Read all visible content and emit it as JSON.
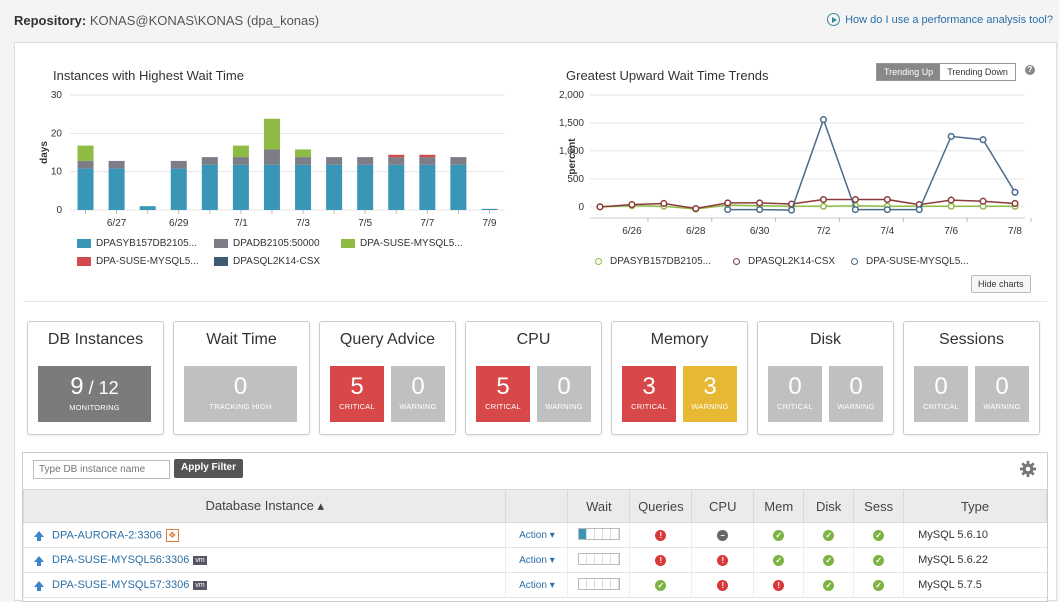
{
  "header": {
    "repo_label": "Repository:",
    "repo_value": "KONAS@KONAS\\KONAS (dpa_konas)",
    "help_link": "How do I use a performance analysis tool?"
  },
  "charts": {
    "toggle": {
      "trending_up": "Trending Up",
      "trending_down": "Trending Down"
    },
    "hide_button": "Hide charts"
  },
  "chart_data": [
    {
      "type": "bar",
      "title": "Instances with Highest Wait Time",
      "ylabel": "days",
      "ylim": [
        0,
        30
      ],
      "yticks": [
        0,
        10,
        20,
        30
      ],
      "categories": [
        "6/26",
        "6/27",
        "6/28",
        "6/29",
        "6/30",
        "7/1",
        "7/2",
        "7/3",
        "7/4",
        "7/5",
        "7/6",
        "7/7",
        "7/8",
        "7/9"
      ],
      "tick_labels": [
        "6/27",
        "6/29",
        "7/1",
        "7/3",
        "7/5",
        "7/7",
        "7/9"
      ],
      "series": [
        {
          "name": "DPASYB157DB2105...",
          "color": "#3a96b7",
          "values": [
            10.8,
            10.8,
            1,
            10.8,
            11.8,
            11.8,
            11.8,
            11.8,
            11.8,
            11.8,
            11.8,
            11.8,
            11.8,
            0.3
          ]
        },
        {
          "name": "DPADB2105:50000",
          "color": "#7d7d87",
          "values": [
            2,
            2,
            0,
            2,
            2,
            2,
            4,
            2,
            2,
            2,
            2,
            2,
            2,
            0
          ]
        },
        {
          "name": "DPA-SUSE-MYSQL5...",
          "color": "#8fbb45",
          "values": [
            4,
            0,
            0,
            0,
            0,
            3,
            8,
            2,
            0,
            0,
            0,
            0,
            0,
            0
          ]
        },
        {
          "name": "DPA-SUSE-MYSQL5...",
          "color": "#d24a4a",
          "values": [
            0,
            0,
            0,
            0,
            0,
            0,
            0,
            0,
            0,
            0,
            0.6,
            0.6,
            0,
            0
          ]
        },
        {
          "name": "DPASQL2K14-CSX",
          "color": "#3f5a73",
          "values": [
            0,
            0,
            0,
            0,
            0,
            0,
            0,
            0,
            0,
            0,
            0,
            0,
            0,
            0
          ]
        }
      ]
    },
    {
      "type": "line",
      "title": "Greatest Upward Wait Time Trends",
      "ylabel": "percent",
      "ylim": [
        -200,
        2000
      ],
      "yticks": [
        0,
        500,
        1000,
        1500,
        2000
      ],
      "ytick_labels": [
        "0",
        "500",
        "1,000",
        "1,500",
        "2,000"
      ],
      "tick_labels": [
        "6/26",
        "6/28",
        "6/30",
        "7/2",
        "7/4",
        "7/6",
        "7/8"
      ],
      "x": [
        "6/25",
        "6/26",
        "6/27",
        "6/28",
        "6/29",
        "6/30",
        "7/1",
        "7/2",
        "7/3",
        "7/4",
        "7/5",
        "7/6",
        "7/7",
        "7/8"
      ],
      "series": [
        {
          "name": "DPASYB157DB2105...",
          "color": "#8fbb45",
          "values": [
            0,
            20,
            10,
            -40,
            30,
            20,
            10,
            10,
            20,
            10,
            10,
            10,
            10,
            10
          ]
        },
        {
          "name": "DPASQL2K14-CSX",
          "color": "#8b3a3a",
          "values": [
            0,
            40,
            60,
            -30,
            70,
            70,
            50,
            130,
            130,
            130,
            40,
            120,
            100,
            60
          ]
        },
        {
          "name": "DPA-SUSE-MYSQL5...",
          "color": "#4a6a8a",
          "values": [
            null,
            null,
            null,
            null,
            -50,
            -50,
            -60,
            1560,
            -50,
            -50,
            -50,
            1260,
            1200,
            260
          ]
        }
      ]
    }
  ],
  "tiles": [
    {
      "title": "DB Instances",
      "boxes": [
        {
          "big": "9",
          "suffix": "/ 12",
          "small": "MONITORING",
          "color": "dark"
        }
      ]
    },
    {
      "title": "Wait Time",
      "boxes": [
        {
          "big": "0",
          "small": "TRACKING HIGH",
          "color": "grey"
        }
      ]
    },
    {
      "title": "Query Advice",
      "boxes": [
        {
          "big": "5",
          "small": "CRITICAL",
          "color": "red"
        },
        {
          "big": "0",
          "small": "WARNING",
          "color": "grey"
        }
      ]
    },
    {
      "title": "CPU",
      "boxes": [
        {
          "big": "5",
          "small": "CRITICAL",
          "color": "red"
        },
        {
          "big": "0",
          "small": "WARNING",
          "color": "grey"
        }
      ]
    },
    {
      "title": "Memory",
      "boxes": [
        {
          "big": "3",
          "small": "CRITICAL",
          "color": "red"
        },
        {
          "big": "3",
          "small": "WARNING",
          "color": "yel"
        }
      ]
    },
    {
      "title": "Disk",
      "boxes": [
        {
          "big": "0",
          "small": "CRITICAL",
          "color": "grey"
        },
        {
          "big": "0",
          "small": "WARNING",
          "color": "grey"
        }
      ]
    },
    {
      "title": "Sessions",
      "boxes": [
        {
          "big": "0",
          "small": "CRITICAL",
          "color": "grey"
        },
        {
          "big": "0",
          "small": "WARNING",
          "color": "grey"
        }
      ]
    }
  ],
  "table": {
    "filter_placeholder": "Type DB instance name",
    "filter_button": "Apply Filter",
    "columns": [
      "Database Instance ▴",
      "",
      "Wait",
      "Queries",
      "CPU",
      "Mem",
      "Disk",
      "Sess",
      "Type"
    ],
    "rows": [
      {
        "name": "DPA-AURORA-2:3306",
        "badge": "aws",
        "action": "Action ▾",
        "wait_fill": 1,
        "queries": "err",
        "cpu": "na",
        "mem": "ok",
        "disk": "ok",
        "sess": "ok",
        "type": "MySQL 5.6.10"
      },
      {
        "name": "DPA-SUSE-MYSQL56:3306",
        "badge": "vm",
        "action": "Action ▾",
        "wait_fill": 0,
        "queries": "err",
        "cpu": "err",
        "mem": "ok",
        "disk": "ok",
        "sess": "ok",
        "type": "MySQL 5.6.22"
      },
      {
        "name": "DPA-SUSE-MYSQL57:3306",
        "badge": "vm",
        "action": "Action ▾",
        "wait_fill": 0,
        "queries": "ok",
        "cpu": "err",
        "mem": "err",
        "disk": "ok",
        "sess": "ok",
        "type": "MySQL 5.7.5"
      }
    ]
  }
}
